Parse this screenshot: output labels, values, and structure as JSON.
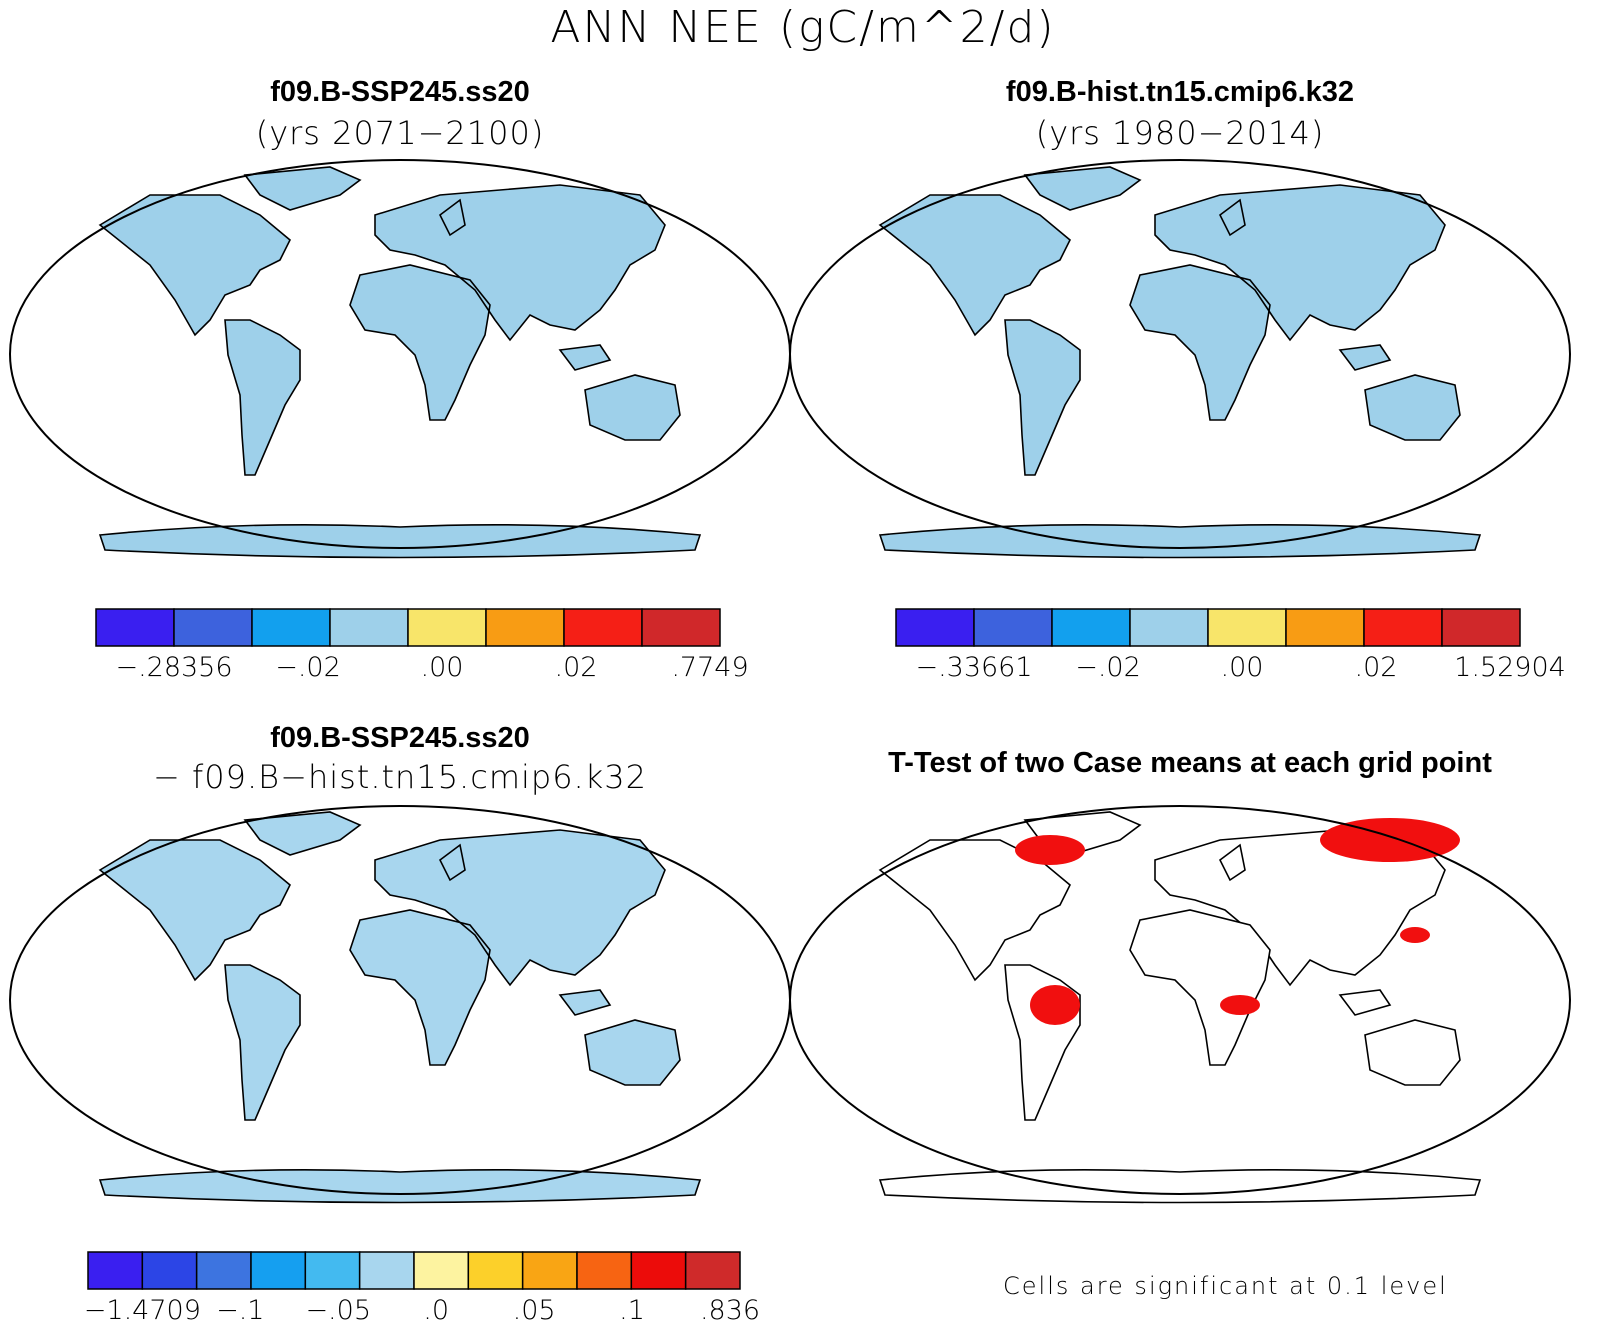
{
  "title": "ANN NEE (gC/m^2/d)",
  "panels": [
    {
      "id": "p1",
      "title": "f09.B-SSP245.ss20",
      "subtitle": "(yrs 2071−2100)"
    },
    {
      "id": "p2",
      "title": "f09.B-hist.tn15.cmip6.k32",
      "subtitle": "(yrs 1980−2014)"
    },
    {
      "id": "p3",
      "title": "f09.B-SSP245.ss20",
      "subtitle": "− f09.B−hist.tn15.cmip6.k32"
    },
    {
      "id": "p4",
      "title": "T-Test of two Case means at each grid point",
      "subtitle": ""
    }
  ],
  "colorbars": [
    {
      "id": "cb1",
      "labels": [
        "−.28356",
        "−.02",
        ".00",
        ".02",
        ".7749"
      ],
      "colors": [
        "#3a1ff0",
        "#3d62dd",
        "#12a0ee",
        "#9ed0ea",
        "#f8e56a",
        "#f89c14",
        "#f51f16",
        "#d0282a"
      ]
    },
    {
      "id": "cb2",
      "labels": [
        "−.33661",
        "−.02",
        ".00",
        ".02",
        "1.52904"
      ],
      "colors": [
        "#3a1ff0",
        "#3d62dd",
        "#12a0ee",
        "#9ed0ea",
        "#f8e56a",
        "#f89c14",
        "#f51f16",
        "#d0282a"
      ]
    },
    {
      "id": "cb3",
      "labels": [
        "−1.4709",
        "−.1",
        "−.05",
        ".0",
        ".05",
        ".1",
        ".836"
      ],
      "colors": [
        "#3a1ff0",
        "#2c45e6",
        "#3d74e0",
        "#159ff0",
        "#43baf0",
        "#a8d6ee",
        "#fdf3a0",
        "#fcd02a",
        "#f9a514",
        "#f76412",
        "#ec0c0a",
        "#cf2a2a"
      ]
    }
  ],
  "ttest_note": "Cells are significant at 0.1 level",
  "colors": {
    "positive": "#d0282a",
    "negative": "#3a1ff0",
    "neutral": "#f8e56a",
    "significant": "#f10f0f"
  }
}
